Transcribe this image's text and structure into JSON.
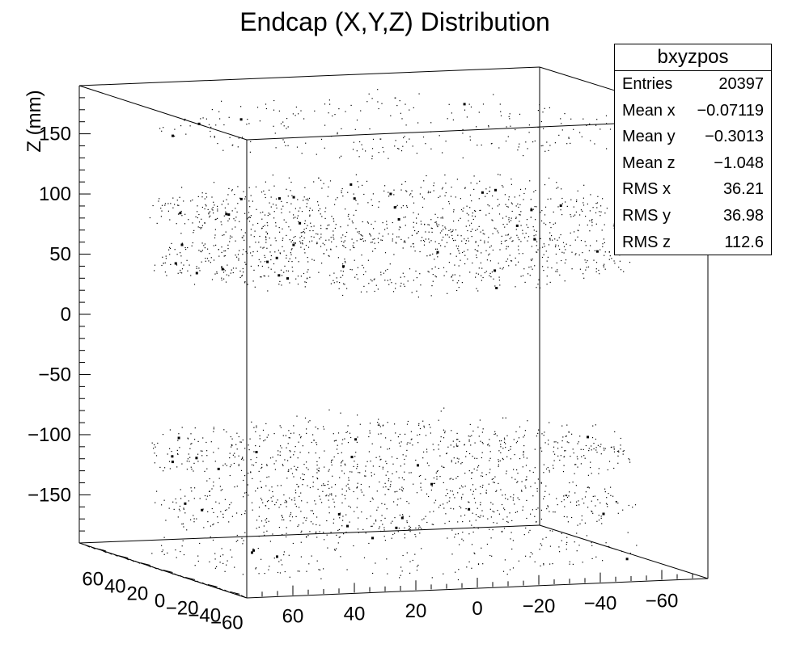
{
  "chart_data": {
    "type": "scatter",
    "title": "Endcap (X,Y,Z) Distribution",
    "zlabel": "Z (mm)",
    "x_ticks": [
      "60",
      "40",
      "20",
      "0",
      "−20",
      "−40",
      "−60"
    ],
    "y_ticks": [
      "60",
      "40",
      "20",
      "0",
      "−20",
      "−40",
      "−60"
    ],
    "z_ticks": [
      "150",
      "100",
      "50",
      "0",
      "−50",
      "−100",
      "−150"
    ],
    "xlim": [
      -75,
      75
    ],
    "ylim": [
      -75,
      75
    ],
    "zlim": [
      -190,
      190
    ],
    "clusters": [
      {
        "z_center": 170,
        "z_spread": 12,
        "r_min": 10,
        "r_max": 75,
        "density": 0.35
      },
      {
        "z_center": 100,
        "z_spread": 18,
        "r_min": 10,
        "r_max": 75,
        "density": 1.0
      },
      {
        "z_center": 60,
        "z_spread": 14,
        "r_min": 10,
        "r_max": 75,
        "density": 1.0
      },
      {
        "z_center": -100,
        "z_spread": 20,
        "r_min": 10,
        "r_max": 75,
        "density": 1.0
      },
      {
        "z_center": -145,
        "z_spread": 14,
        "r_min": 10,
        "r_max": 75,
        "density": 0.8
      },
      {
        "z_center": -180,
        "z_spread": 10,
        "r_min": 10,
        "r_max": 75,
        "density": 0.35
      }
    ],
    "stats": {
      "name": "bxyzpos",
      "rows": [
        {
          "label": "Entries",
          "value": "20397"
        },
        {
          "label": "Mean x",
          "value": "−0.07119"
        },
        {
          "label": "Mean y",
          "value": "−0.3013"
        },
        {
          "label": "Mean z",
          "value": "−1.048"
        },
        {
          "label": "RMS x",
          "value": "36.21"
        },
        {
          "label": "RMS y",
          "value": "36.98"
        },
        {
          "label": "RMS z",
          "value": "112.6"
        }
      ]
    },
    "grid": false,
    "legend": "top-right"
  }
}
